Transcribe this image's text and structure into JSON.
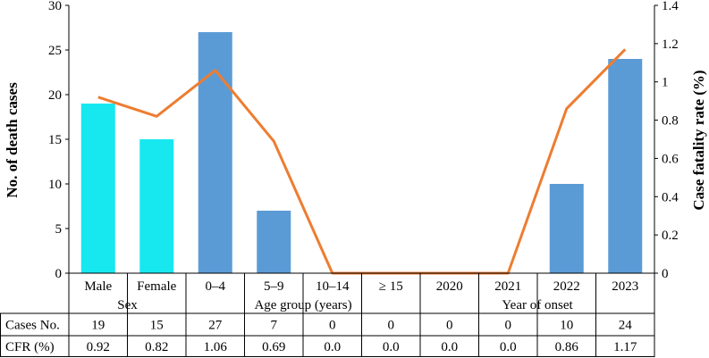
{
  "chart_data": {
    "type": "bar",
    "categories": [
      "Male",
      "Female",
      "0–4",
      "5–9",
      "10–14",
      "≥ 15",
      "2020",
      "2021",
      "2022",
      "2023"
    ],
    "groups": [
      {
        "label": "Sex",
        "span": 2
      },
      {
        "label": "Age group (years)",
        "span": 4
      },
      {
        "label": "Year of onset",
        "span": 4
      }
    ],
    "series": [
      {
        "type": "bar",
        "axis": "left",
        "values": [
          19,
          15,
          27,
          7,
          0,
          0,
          0,
          0,
          10,
          24
        ],
        "colors": [
          "#17E8F0",
          "#17E8F0",
          "#5B9BD5",
          "#5B9BD5",
          "#5B9BD5",
          "#5B9BD5",
          "#5B9BD5",
          "#5B9BD5",
          "#5B9BD5",
          "#5B9BD5"
        ]
      },
      {
        "type": "line",
        "axis": "right",
        "values": [
          0.92,
          0.82,
          1.06,
          0.69,
          0.0,
          0.0,
          0.0,
          0.0,
          0.86,
          1.17
        ],
        "color": "#ED7D31"
      }
    ],
    "ylabel": "No. of death cases",
    "ylabel_right": "Case fatality rate (%)",
    "ylim": [
      0,
      30
    ],
    "yticks": [
      "0",
      "5",
      "10",
      "15",
      "20",
      "25",
      "30"
    ],
    "ylim_right": [
      0,
      1.4
    ],
    "yticks_right": [
      "0",
      "0.2",
      "0.4",
      "0.6",
      "0.8",
      "1",
      "1.2",
      "1.4"
    ],
    "grid": false,
    "table": {
      "rows": [
        {
          "label": "Cases No.",
          "values": [
            "19",
            "15",
            "27",
            "7",
            "0",
            "0",
            "0",
            "0",
            "10",
            "24"
          ]
        },
        {
          "label": "CFR (%)",
          "values": [
            "0.92",
            "0.82",
            "1.06",
            "0.69",
            "0.0",
            "0.0",
            "0.0",
            "0.0",
            "0.86",
            "1.17"
          ]
        }
      ]
    }
  }
}
